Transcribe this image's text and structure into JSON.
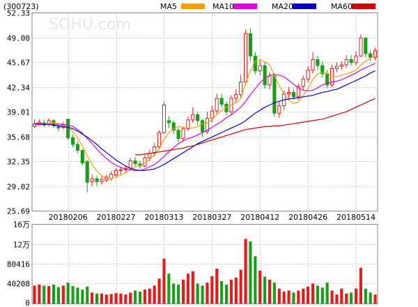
{
  "chart_data": {
    "type": "candlestick",
    "stock_code": "(300723)",
    "watermark": "SOHU.com",
    "price_axis": {
      "min": 25.69,
      "max": 52.33,
      "ticks": [
        "52.33",
        "49.00",
        "45.67",
        "42.34",
        "39.01",
        "35.68",
        "32.35",
        "29.02",
        "25.69"
      ]
    },
    "date_ticks": [
      {
        "label": "20180206",
        "index": 7
      },
      {
        "label": "20180227",
        "index": 17
      },
      {
        "label": "20180313",
        "index": 27
      },
      {
        "label": "20180327",
        "index": 37
      },
      {
        "label": "20180412",
        "index": 47
      },
      {
        "label": "20180426",
        "index": 57
      },
      {
        "label": "20180514",
        "index": 67
      }
    ],
    "legend": [
      {
        "name": "MA5",
        "color": "#f5a000"
      },
      {
        "name": "MA10",
        "color": "#e000e0"
      },
      {
        "name": "MA20",
        "color": "#0000cc"
      },
      {
        "name": "MA60",
        "color": "#d40000"
      }
    ],
    "colors": {
      "up": "#e21b1b",
      "down": "#1a9e1a"
    },
    "candles": [
      [
        37.0,
        37.4,
        36.8,
        38.0
      ],
      [
        37.4,
        37.6,
        37.1,
        38.0
      ],
      [
        37.5,
        37.2,
        36.9,
        38.0
      ],
      [
        37.3,
        37.8,
        37.0,
        38.1
      ],
      [
        37.8,
        37.1,
        36.8,
        38.0
      ],
      [
        37.0,
        36.8,
        36.4,
        37.4
      ],
      [
        36.9,
        37.2,
        36.6,
        37.6
      ],
      [
        38.0,
        35.5,
        35.2,
        38.0
      ],
      [
        35.5,
        34.6,
        34.2,
        35.9
      ],
      [
        34.6,
        33.8,
        33.4,
        35.0
      ],
      [
        33.8,
        32.1,
        31.8,
        34.0
      ],
      [
        32.3,
        29.5,
        28.1,
        32.5
      ],
      [
        29.6,
        30.0,
        29.0,
        30.5
      ],
      [
        30.0,
        29.6,
        29.0,
        30.4
      ],
      [
        29.6,
        29.9,
        29.2,
        30.3
      ],
      [
        29.8,
        30.2,
        29.5,
        30.5
      ],
      [
        30.0,
        30.6,
        29.7,
        31.0
      ],
      [
        30.5,
        31.1,
        30.2,
        31.4
      ],
      [
        31.1,
        31.2,
        30.6,
        31.6
      ],
      [
        31.2,
        31.4,
        30.8,
        31.8
      ],
      [
        31.4,
        32.4,
        31.1,
        32.8
      ],
      [
        32.4,
        32.0,
        31.6,
        32.9
      ],
      [
        32.0,
        31.7,
        31.3,
        32.4
      ],
      [
        31.7,
        32.8,
        31.5,
        33.2
      ],
      [
        32.8,
        33.4,
        32.4,
        33.9
      ],
      [
        33.4,
        34.3,
        33.0,
        34.8
      ],
      [
        34.3,
        36.2,
        34.0,
        36.5
      ],
      [
        36.2,
        39.9,
        36.0,
        40.4
      ],
      [
        37.8,
        37.5,
        36.8,
        38.4
      ],
      [
        37.5,
        36.5,
        36.0,
        37.8
      ],
      [
        36.5,
        35.4,
        34.9,
        36.8
      ],
      [
        35.4,
        36.7,
        35.0,
        37.0
      ],
      [
        36.7,
        37.9,
        36.4,
        38.4
      ],
      [
        37.9,
        38.6,
        37.5,
        39.6
      ],
      [
        38.6,
        37.8,
        37.2,
        39.0
      ],
      [
        37.8,
        36.3,
        35.6,
        38.0
      ],
      [
        36.3,
        38.1,
        36.0,
        39.0
      ],
      [
        38.1,
        39.1,
        37.6,
        39.8
      ],
      [
        39.1,
        40.8,
        38.7,
        41.4
      ],
      [
        40.8,
        40.0,
        39.5,
        41.4
      ],
      [
        40.0,
        39.0,
        38.5,
        40.4
      ],
      [
        39.0,
        40.8,
        38.6,
        41.2
      ],
      [
        40.8,
        41.3,
        40.3,
        42.0
      ],
      [
        41.3,
        43.0,
        40.8,
        44.0
      ],
      [
        43.0,
        49.5,
        42.6,
        50.0
      ],
      [
        49.5,
        46.5,
        45.8,
        50.2
      ],
      [
        46.5,
        44.5,
        44.0,
        47.0
      ],
      [
        44.5,
        45.2,
        43.9,
        45.9
      ],
      [
        45.2,
        42.6,
        42.1,
        45.6
      ],
      [
        42.6,
        43.8,
        42.0,
        44.3
      ],
      [
        43.8,
        38.8,
        38.3,
        44.2
      ],
      [
        38.8,
        39.8,
        38.2,
        40.4
      ],
      [
        39.8,
        41.4,
        39.2,
        41.8
      ],
      [
        41.4,
        41.6,
        40.8,
        42.3
      ],
      [
        41.6,
        41.0,
        40.6,
        42.1
      ],
      [
        41.0,
        42.4,
        40.6,
        42.8
      ],
      [
        42.4,
        43.4,
        41.8,
        43.9
      ],
      [
        43.4,
        44.6,
        42.9,
        45.1
      ],
      [
        44.6,
        46.0,
        44.1,
        47.0
      ],
      [
        46.0,
        45.2,
        44.6,
        46.5
      ],
      [
        45.2,
        44.1,
        43.6,
        45.8
      ],
      [
        44.1,
        42.6,
        42.1,
        44.6
      ],
      [
        42.6,
        44.8,
        42.3,
        45.3
      ],
      [
        44.8,
        45.1,
        44.3,
        45.6
      ],
      [
        45.1,
        45.3,
        44.6,
        45.8
      ],
      [
        45.3,
        46.0,
        44.9,
        46.6
      ],
      [
        46.0,
        45.6,
        45.2,
        46.6
      ],
      [
        45.6,
        46.5,
        45.2,
        47.1
      ],
      [
        46.5,
        48.9,
        46.3,
        49.4
      ],
      [
        48.9,
        46.8,
        46.3,
        49.0
      ],
      [
        46.8,
        46.3,
        45.8,
        47.3
      ],
      [
        46.3,
        47.2,
        45.9,
        47.6
      ]
    ],
    "ma5": [
      37.1,
      37.2,
      37.3,
      37.4,
      37.5,
      37.4,
      37.3,
      36.9,
      36.3,
      35.5,
      34.4,
      33.1,
      31.9,
      31.0,
      30.4,
      30.0,
      30.0,
      30.2,
      30.5,
      30.8,
      31.2,
      31.6,
      31.8,
      32.1,
      32.6,
      33.2,
      34.0,
      35.3,
      36.2,
      36.7,
      37.0,
      36.9,
      36.8,
      36.8,
      37.0,
      37.4,
      37.5,
      37.9,
      38.6,
      39.2,
      39.6,
      39.9,
      40.2,
      40.8,
      42.9,
      44.5,
      45.8,
      46.0,
      45.7,
      45.3,
      43.8,
      42.5,
      41.4,
      40.6,
      40.1,
      40.3,
      41.2,
      42.1,
      43.3,
      44.1,
      44.3,
      44.1,
      43.8,
      43.7,
      43.9,
      44.1,
      44.3,
      44.6,
      45.3,
      45.8,
      46.2,
      46.5
    ],
    "ma10": [
      37.3,
      37.3,
      37.3,
      37.3,
      37.3,
      37.3,
      37.3,
      37.2,
      37.0,
      36.6,
      36.1,
      35.4,
      34.7,
      34.0,
      33.3,
      32.7,
      32.2,
      31.8,
      31.5,
      31.3,
      31.2,
      31.1,
      31.1,
      31.3,
      31.6,
      31.9,
      32.4,
      33.0,
      33.6,
      34.2,
      34.7,
      35.1,
      35.4,
      35.6,
      35.9,
      36.2,
      36.5,
      36.9,
      37.3,
      37.7,
      38.2,
      38.6,
      39.1,
      39.6,
      40.4,
      41.3,
      42.1,
      42.9,
      43.5,
      43.9,
      44.0,
      43.9,
      43.7,
      43.2,
      42.7,
      42.2,
      41.9,
      41.8,
      41.9,
      42.2,
      42.6,
      42.8,
      43.0,
      43.1,
      43.3,
      43.6,
      43.9,
      44.2,
      44.6,
      44.9,
      45.2,
      45.5
    ],
    "ma20": [
      37.4,
      37.4,
      37.3,
      37.3,
      37.2,
      37.1,
      37.0,
      36.9,
      36.7,
      36.4,
      36.0,
      35.6,
      35.1,
      34.6,
      34.0,
      33.5,
      33.0,
      32.5,
      32.1,
      31.7,
      31.4,
      31.2,
      31.1,
      31.1,
      31.2,
      31.3,
      31.6,
      31.9,
      32.3,
      32.7,
      33.1,
      33.5,
      33.9,
      34.3,
      34.7,
      35.0,
      35.3,
      35.6,
      35.9,
      36.2,
      36.5,
      36.8,
      37.1,
      37.4,
      37.8,
      38.3,
      38.8,
      39.2,
      39.6,
      39.9,
      40.2,
      40.4,
      40.6,
      40.7,
      40.8,
      40.9,
      41.0,
      41.1,
      41.2,
      41.4,
      41.6,
      41.7,
      41.9,
      42.0,
      42.3,
      42.6,
      42.9,
      43.2,
      43.5,
      43.8,
      44.2,
      44.5
    ],
    "ma60": [
      null,
      null,
      null,
      null,
      null,
      null,
      null,
      null,
      null,
      null,
      null,
      null,
      null,
      null,
      null,
      null,
      null,
      null,
      null,
      null,
      null,
      33.2,
      33.2,
      33.3,
      33.4,
      33.5,
      33.6,
      33.7,
      33.8,
      33.9,
      34.0,
      34.1,
      34.3,
      34.4,
      34.6,
      34.8,
      35.0,
      35.2,
      35.4,
      35.6,
      35.8,
      36.0,
      36.2,
      36.4,
      36.6,
      36.7,
      36.8,
      36.9,
      37.0,
      37.0,
      37.1,
      37.1,
      37.2,
      37.3,
      37.4,
      37.5,
      37.6,
      37.7,
      37.8,
      37.9,
      38.0,
      38.2,
      38.4,
      38.6,
      38.8,
      39.0,
      39.3,
      39.6,
      39.9,
      40.2,
      40.5,
      40.8
    ],
    "volume_axis": {
      "max": 160000,
      "ticks": [
        {
          "label": "16万",
          "value": 160000
        },
        {
          "label": "12万",
          "value": 120000
        },
        {
          "label": "80416",
          "value": 80416
        },
        {
          "label": "40208",
          "value": 40208
        },
        {
          "label": "0",
          "value": 0
        }
      ]
    },
    "volume": [
      36000,
      38000,
      36000,
      35000,
      38000,
      33000,
      36000,
      42000,
      35000,
      32000,
      28000,
      34000,
      22000,
      20000,
      20000,
      18000,
      19000,
      21000,
      20000,
      18000,
      22000,
      26000,
      24000,
      28000,
      30000,
      36000,
      50000,
      90000,
      60000,
      40000,
      38000,
      48000,
      60000,
      65000,
      40000,
      36000,
      42000,
      55000,
      70000,
      45000,
      38000,
      48000,
      52000,
      68000,
      130000,
      125000,
      95000,
      66000,
      54000,
      48000,
      42000,
      30000,
      24000,
      26000,
      22000,
      26000,
      30000,
      34000,
      40000,
      36000,
      32000,
      42000,
      26000,
      18000,
      30000,
      20000,
      22000,
      30000,
      72000,
      30000,
      22000,
      18000
    ]
  }
}
